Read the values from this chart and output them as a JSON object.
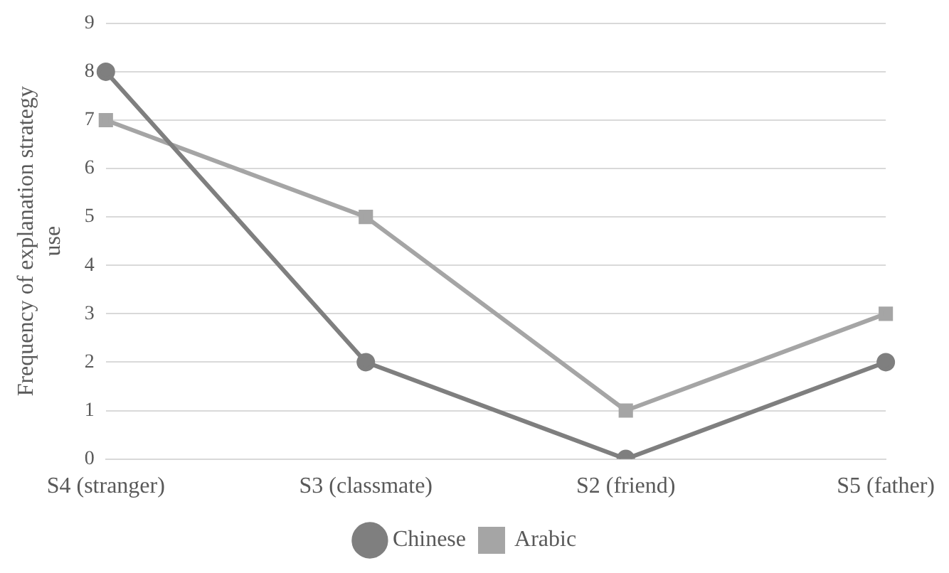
{
  "chart_data": {
    "type": "line",
    "ylabel": "Frequency of explanation strategy use",
    "categories": [
      "S4 (stranger)",
      "S3 (classmate)",
      "S2 (friend)",
      "S5 (father)"
    ],
    "series": [
      {
        "name": "Chinese",
        "color": "#7f7f7f",
        "marker": "circle",
        "values": [
          8,
          2,
          0,
          2
        ]
      },
      {
        "name": "Arabic",
        "color": "#a5a5a5",
        "marker": "square",
        "values": [
          7,
          5,
          1,
          3
        ]
      }
    ],
    "ylim": [
      0,
      9
    ],
    "yticks": [
      0,
      1,
      2,
      3,
      4,
      5,
      6,
      7,
      8,
      9
    ],
    "grid": "y",
    "legend": "bottom",
    "line_style": "solid"
  }
}
